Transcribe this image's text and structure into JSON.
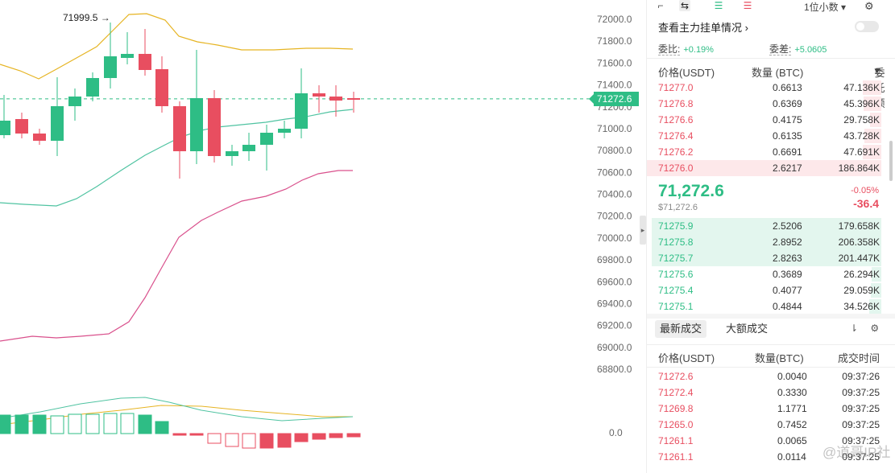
{
  "chart": {
    "current_price": "71272.6",
    "high_marker": "71999.5",
    "y_axis": [
      "72000.0",
      "71800.0",
      "71600.0",
      "71400.0",
      "71200.0",
      "71000.0",
      "70800.0",
      "70600.0",
      "70400.0",
      "70200.0",
      "70000.0",
      "69800.0",
      "69600.0",
      "69400.0",
      "69200.0",
      "69000.0",
      "68800.0"
    ],
    "macd_zero": "0.0",
    "colors": {
      "up": "#2ebd85",
      "down": "#e84e60",
      "ma_upper": "#e6b422",
      "ma_mid": "#4fc3a1",
      "ma_lower": "#d9508c"
    }
  },
  "toolbar": {
    "decimal_label": "1位小数"
  },
  "orderbook": {
    "inspect_label": "查看主力挂单情况",
    "ratio_label": "委比:",
    "ratio_value": "+0.19%",
    "diff_label": "委差:",
    "diff_value": "+5.0605",
    "headers": {
      "price": "价格(USDT)",
      "qty": "数量 (BTC)",
      "total": "委托额"
    },
    "asks": [
      {
        "price": "71277.0",
        "qty": "0.6613",
        "total": "47.136K",
        "depth": 0.25
      },
      {
        "price": "71276.8",
        "qty": "0.6369",
        "total": "45.396K",
        "depth": 0.24
      },
      {
        "price": "71276.6",
        "qty": "0.4175",
        "total": "29.758K",
        "depth": 0.16
      },
      {
        "price": "71276.4",
        "qty": "0.6135",
        "total": "43.728K",
        "depth": 0.23
      },
      {
        "price": "71276.2",
        "qty": "0.6691",
        "total": "47.691K",
        "depth": 0.25
      },
      {
        "price": "71276.0",
        "qty": "2.6217",
        "total": "186.864K",
        "depth": 1.0
      }
    ],
    "last_price": "71,272.6",
    "last_price_usd": "$71,272.6",
    "change_pct": "-0.05%",
    "change_abs": "-36.4",
    "bids": [
      {
        "price": "71275.9",
        "qty": "2.5206",
        "total": "179.658K",
        "depth": 0.87
      },
      {
        "price": "71275.8",
        "qty": "2.8952",
        "total": "206.358K",
        "depth": 1.0
      },
      {
        "price": "71275.7",
        "qty": "2.8263",
        "total": "201.447K",
        "depth": 0.98
      },
      {
        "price": "71275.6",
        "qty": "0.3689",
        "total": "26.294K",
        "depth": 0.13
      },
      {
        "price": "71275.4",
        "qty": "0.4077",
        "total": "29.059K",
        "depth": 0.14
      },
      {
        "price": "71275.1",
        "qty": "0.4844",
        "total": "34.526K",
        "depth": 0.17
      }
    ]
  },
  "trades": {
    "tab_latest": "最新成交",
    "tab_large": "大额成交",
    "headers": {
      "price": "价格(USDT)",
      "qty": "数量(BTC)",
      "time": "成交时间"
    },
    "rows": [
      {
        "price": "71272.6",
        "qty": "0.0040",
        "time": "09:37:26"
      },
      {
        "price": "71272.4",
        "qty": "0.3330",
        "time": "09:37:25"
      },
      {
        "price": "71269.8",
        "qty": "1.1771",
        "time": "09:37:25"
      },
      {
        "price": "71265.0",
        "qty": "0.7452",
        "time": "09:37:25"
      },
      {
        "price": "71261.1",
        "qty": "0.0065",
        "time": "09:37:25"
      },
      {
        "price": "71261.1",
        "qty": "0.0114",
        "time": "09:37:25"
      }
    ]
  },
  "watermark": "@道哥IP社"
}
